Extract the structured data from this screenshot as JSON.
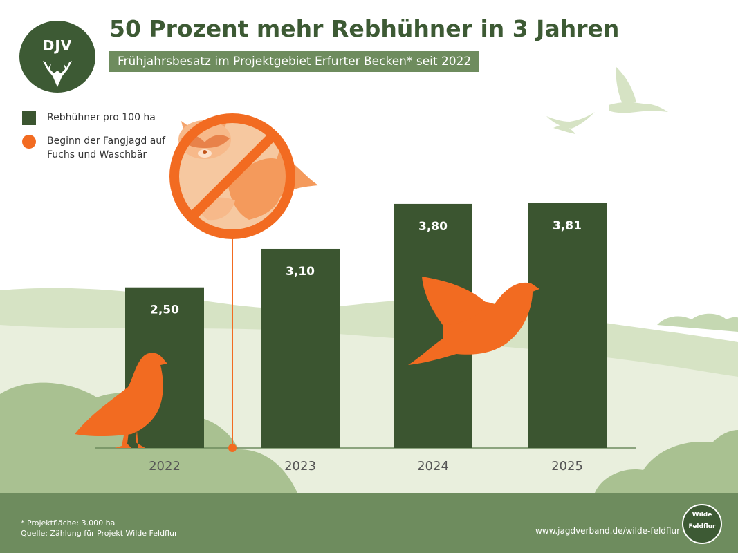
{
  "header": {
    "logo_text": "DJV",
    "title": "50 Prozent mehr Rebhühner in 3 Jahren",
    "subtitle": "Frühjahrsbesatz im Projektgebiet Erfurter Becken* seit 2022"
  },
  "legend": {
    "items": [
      {
        "label": "Rebhühner pro 100 ha",
        "color": "#3b5530",
        "icon": "square"
      },
      {
        "label": "Beginn der Fangjagd auf Fuchs und Waschbär",
        "color": "#f26b21",
        "icon": "circle"
      }
    ]
  },
  "chart_data": {
    "type": "bar",
    "title": "50 Prozent mehr Rebhühner in 3 Jahren",
    "subtitle": "Frühjahrsbesatz im Projektgebiet Erfurter Becken* seit 2022",
    "categories": [
      "2022",
      "2023",
      "2024",
      "2025"
    ],
    "series": [
      {
        "name": "Rebhühner pro 100 ha",
        "values": [
          2.5,
          3.1,
          3.8,
          3.81
        ],
        "labels": [
          "2,50",
          "3,10",
          "3,80",
          "3,81"
        ]
      }
    ],
    "ylim": [
      0,
      4.4
    ],
    "grid": false,
    "annotations": [
      {
        "label": "Beginn der Fangjagd auf Fuchs und Waschbär",
        "at": "between 2022 and 2023"
      }
    ],
    "colors": {
      "bar": "#3b5530",
      "marker": "#f26b21"
    }
  },
  "footer": {
    "note": "* Projektfläche: 3.000 ha",
    "source": "Quelle: Zählung für Projekt Wilde Feldflur",
    "url": "www.jagdverband.de/wilde-feldflur",
    "badge_line1": "Wilde",
    "badge_line2": "Feldflur"
  },
  "icons": [
    "deer-antler-icon",
    "no-predators-icon",
    "raccoon-icon",
    "fox-icon",
    "partridge-icon",
    "flying-partridge-icon",
    "bird-icon"
  ]
}
